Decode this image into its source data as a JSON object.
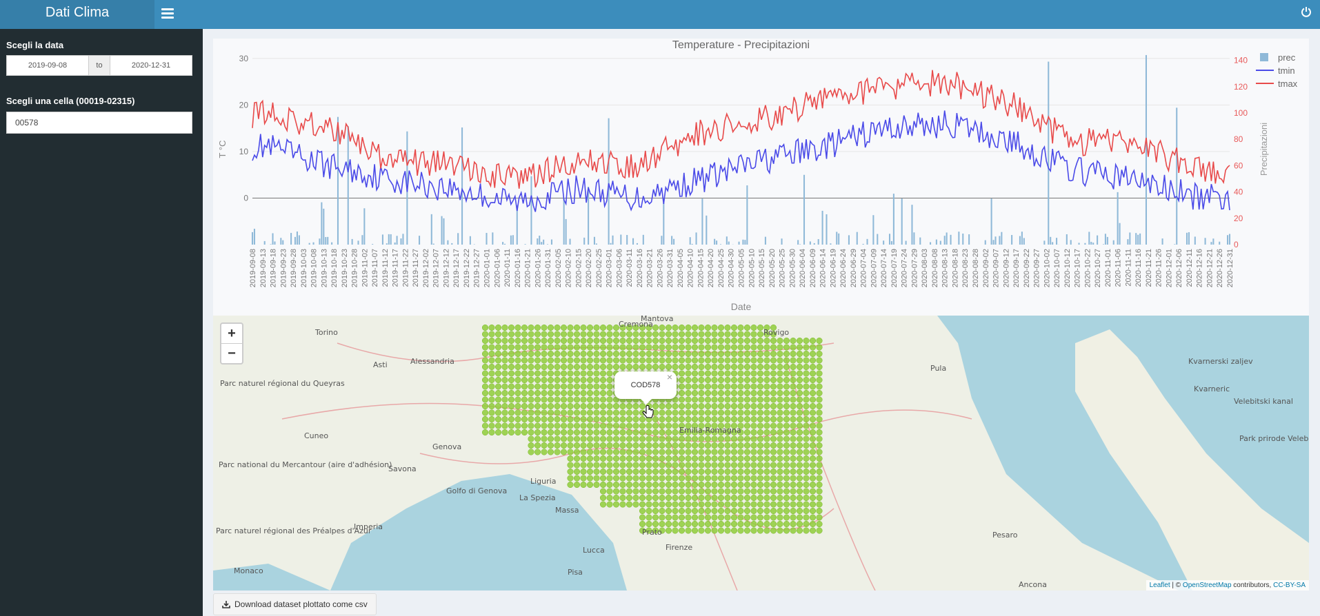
{
  "app": {
    "title": "Dati Clima"
  },
  "sidebar": {
    "date_label": "Scegli la data",
    "date_from": "2019-09-08",
    "date_sep": "to",
    "date_to": "2020-12-31",
    "cell_label": "Scegli una cella (00019-02315)",
    "cell_value": "00578"
  },
  "chart_data": {
    "type": "line",
    "title": "Temperature - Precipitazioni",
    "xlabel": "Date",
    "ylabel": "T °C",
    "y2label": "Precipitazioni",
    "ylim": [
      -10,
      31
    ],
    "y2lim": [
      0,
      145
    ],
    "yticks": [
      0,
      10,
      20,
      30
    ],
    "y2ticks": [
      0,
      20,
      40,
      60,
      80,
      100,
      120,
      140
    ],
    "legend_position": "top-right",
    "x_start": "2019-09-08",
    "x_end": "2020-12-31",
    "x_tick_step_days": 5,
    "monthly_series": [
      {
        "name": "tmin",
        "color": "#4a4ae8",
        "type": "line",
        "axis": "y",
        "dates": [
          "2019-09-15",
          "2019-10-15",
          "2019-11-15",
          "2019-12-15",
          "2020-01-15",
          "2020-02-15",
          "2020-03-15",
          "2020-04-15",
          "2020-05-15",
          "2020-06-15",
          "2020-07-15",
          "2020-08-15",
          "2020-09-15",
          "2020-10-15",
          "2020-11-15",
          "2020-12-15"
        ],
        "values": [
          11,
          7,
          4,
          2,
          -1,
          2,
          0,
          4,
          8,
          11,
          15,
          16,
          12,
          6,
          4,
          0
        ]
      },
      {
        "name": "tmax",
        "color": "#e84a4a",
        "type": "line",
        "axis": "y",
        "dates": [
          "2019-09-15",
          "2019-10-15",
          "2019-11-15",
          "2019-12-15",
          "2020-01-15",
          "2020-02-15",
          "2020-03-15",
          "2020-04-15",
          "2020-05-15",
          "2020-06-15",
          "2020-07-15",
          "2020-08-15",
          "2020-09-15",
          "2020-10-15",
          "2020-11-15",
          "2020-12-15"
        ],
        "values": [
          18,
          15,
          8,
          7,
          4,
          8,
          7,
          14,
          17,
          21,
          24,
          25,
          20,
          12,
          12,
          6
        ]
      }
    ],
    "prec_series": {
      "name": "prec",
      "color": "#8fb9d8",
      "type": "bar",
      "axis": "y2",
      "dates": [
        "2019-10-20",
        "2019-10-25",
        "2019-11-23",
        "2019-12-20",
        "2020-01-23",
        "2020-03-01",
        "2020-05-08",
        "2020-06-05",
        "2020-07-23",
        "2020-09-05",
        "2020-10-03",
        "2020-11-20",
        "2020-12-05"
      ],
      "values": [
        97,
        90,
        86,
        89,
        52,
        96,
        45,
        53,
        35,
        35,
        139,
        144,
        104
      ]
    }
  },
  "map": {
    "popup_text": "COD578",
    "close": "×",
    "zoom_in": "+",
    "zoom_out": "−",
    "attribution": {
      "leaflet": "Leaflet",
      "sep": " | © ",
      "osm": "OpenStreetMap",
      "contrib": " contributors, ",
      "license": "CC-BY-SA"
    },
    "places": [
      "Torino",
      "Alessandria",
      "Asti",
      "Cuneo",
      "Savona",
      "Genova",
      "Mantova",
      "Rovigo",
      "Pula",
      "La Spezia",
      "Massa",
      "Lucca",
      "Prato",
      "Firenze",
      "Pisa",
      "Pesaro",
      "Imperia",
      "Monaco",
      "Ancona",
      "Cremona",
      "Liguria",
      "Emilia-Romagna",
      "Golfo di Genova",
      "Parc naturel régional du Queyras",
      "Parc national du Mercantour (aire d'adhésion)",
      "Parc naturel régional des Préalpes d'Azur",
      "Kvarnerski zaljev",
      "Kvarneric",
      "Velebitski kanal",
      "Park prirode Velebit"
    ],
    "grid_color": "#8fcc3a"
  },
  "download": {
    "label": "Download dataset plottato come csv"
  }
}
